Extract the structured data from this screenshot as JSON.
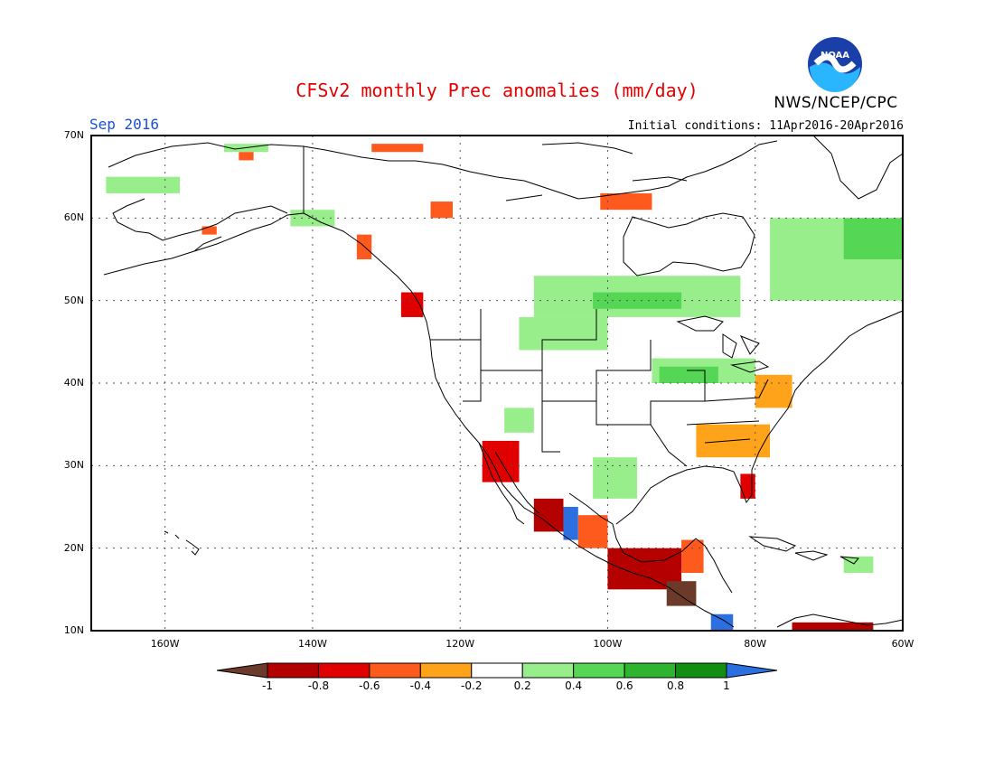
{
  "header": {
    "title": "CFSv2 monthly Prec anomalies (mm/day)",
    "month": "Sep 2016",
    "initial_conditions": "Initial conditions: 11Apr2016-20Apr2016",
    "agency": "NWS/NCEP/CPC",
    "logo_text": "NOAA"
  },
  "map": {
    "lat_labels": [
      "70N",
      "60N",
      "50N",
      "40N",
      "30N",
      "20N",
      "10N"
    ],
    "lon_labels": [
      "160W",
      "140W",
      "120W",
      "100W",
      "80W",
      "60W"
    ],
    "lat_range": [
      10,
      70
    ],
    "lon_range": [
      -170,
      -60
    ]
  },
  "colorbar": {
    "labels": [
      "-1",
      "-0.8",
      "-0.6",
      "-0.4",
      "-0.2",
      "0.2",
      "0.4",
      "0.6",
      "0.8",
      "1"
    ],
    "colors": [
      "#6b3a2a",
      "#b50000",
      "#e00000",
      "#ff5a1e",
      "#ffa31a",
      "#ffffff",
      "#99ee8c",
      "#55d655",
      "#2fb42f",
      "#128f12",
      "#2b6fe0"
    ]
  },
  "anomaly_cells": [
    {
      "region": "Alaska north slope",
      "lon": [
        -152,
        -146
      ],
      "lat": [
        68,
        69
      ],
      "value": 0.3
    },
    {
      "region": "Alaska west",
      "lon": [
        -168,
        -158
      ],
      "lat": [
        63,
        65
      ],
      "value": 0.3
    },
    {
      "region": "Alaska southeast",
      "lon": [
        -143,
        -137
      ],
      "lat": [
        59,
        61
      ],
      "value": 0.4
    },
    {
      "region": "Alaska south coast",
      "lon": [
        -155,
        -153
      ],
      "lat": [
        58,
        59
      ],
      "value": -0.4
    },
    {
      "region": "Yukon",
      "lon": [
        -150,
        -148
      ],
      "lat": [
        67,
        68
      ],
      "value": -0.4
    },
    {
      "region": "Beaufort coast",
      "lon": [
        -132,
        -125
      ],
      "lat": [
        68,
        69
      ],
      "value": -0.4
    },
    {
      "region": "Northwest Territories",
      "lon": [
        -124,
        -121
      ],
      "lat": [
        60,
        62
      ],
      "value": -0.4
    },
    {
      "region": "Hudson Bay north",
      "lon": [
        -101,
        -94
      ],
      "lat": [
        61,
        63
      ],
      "value": -0.4
    },
    {
      "region": "BC coast",
      "lon": [
        -134,
        -132
      ],
      "lat": [
        55,
        58
      ],
      "value": -0.4
    },
    {
      "region": "Vancouver Island",
      "lon": [
        -128,
        -125
      ],
      "lat": [
        48,
        51
      ],
      "value": -0.6
    },
    {
      "region": "Canadian Prairies",
      "lon": [
        -110,
        -82
      ],
      "lat": [
        48,
        53
      ],
      "value": 0.4
    },
    {
      "region": "Manitoba Ontario",
      "lon": [
        -102,
        -90
      ],
      "lat": [
        49,
        51
      ],
      "value": 0.6
    },
    {
      "region": "Labrador Quebec",
      "lon": [
        -78,
        -60
      ],
      "lat": [
        50,
        60
      ],
      "value": 0.4
    },
    {
      "region": "Labrador east",
      "lon": [
        -68,
        -60
      ],
      "lat": [
        55,
        60
      ],
      "value": 0.5
    },
    {
      "region": "Great Lakes",
      "lon": [
        -94,
        -80
      ],
      "lat": [
        40,
        43
      ],
      "value": 0.4
    },
    {
      "region": "Iowa Illinois",
      "lon": [
        -93,
        -85
      ],
      "lat": [
        40,
        42
      ],
      "value": 0.6
    },
    {
      "region": "Northern Plains",
      "lon": [
        -112,
        -100
      ],
      "lat": [
        44,
        48
      ],
      "value": 0.3
    },
    {
      "region": "Mid Atlantic",
      "lon": [
        -80,
        -75
      ],
      "lat": [
        37,
        41
      ],
      "value": -0.3
    },
    {
      "region": "Southeast US",
      "lon": [
        -88,
        -78
      ],
      "lat": [
        31,
        35
      ],
      "value": -0.3
    },
    {
      "region": "Florida",
      "lon": [
        -82,
        -80
      ],
      "lat": [
        26,
        29
      ],
      "value": -0.6
    },
    {
      "region": "Baja California",
      "lon": [
        -117,
        -112
      ],
      "lat": [
        28,
        33
      ],
      "value": -0.6
    },
    {
      "region": "Gulf of California",
      "lon": [
        -110,
        -106
      ],
      "lat": [
        22,
        26
      ],
      "value": -0.8
    },
    {
      "region": "Sierra Madre",
      "lon": [
        -106,
        -104
      ],
      "lat": [
        21,
        25
      ],
      "value": 1.0
    },
    {
      "region": "Southern Mexico",
      "lon": [
        -100,
        -90
      ],
      "lat": [
        15,
        20
      ],
      "value": -0.8
    },
    {
      "region": "Central America",
      "lon": [
        -92,
        -88
      ],
      "lat": [
        13,
        16
      ],
      "value": -1.0
    },
    {
      "region": "Yucatan",
      "lon": [
        -90,
        -87
      ],
      "lat": [
        17,
        21
      ],
      "value": -0.4
    },
    {
      "region": "Costa Rica",
      "lon": [
        -86,
        -83
      ],
      "lat": [
        10,
        12
      ],
      "value": 1.0
    },
    {
      "region": "Caribbean South America",
      "lon": [
        -75,
        -64
      ],
      "lat": [
        10,
        11
      ],
      "value": -0.8
    },
    {
      "region": "Texas south",
      "lon": [
        -102,
        -96
      ],
      "lat": [
        26,
        31
      ],
      "value": 0.3
    },
    {
      "region": "Mexico plateau",
      "lon": [
        -104,
        -100
      ],
      "lat": [
        20,
        24
      ],
      "value": -0.4
    },
    {
      "region": "Southwest US",
      "lon": [
        -114,
        -110
      ],
      "lat": [
        34,
        37
      ],
      "value": 0.3
    },
    {
      "region": "Greater Antilles",
      "lon": [
        -68,
        -64
      ],
      "lat": [
        17,
        19
      ],
      "value": 0.3
    }
  ]
}
